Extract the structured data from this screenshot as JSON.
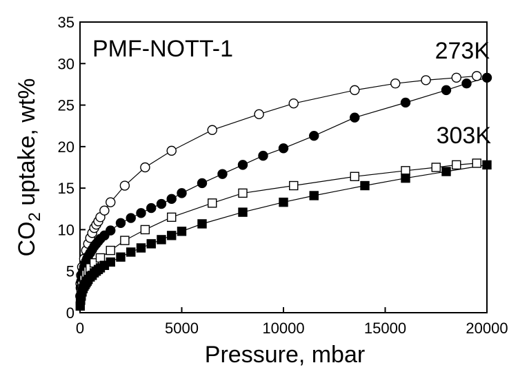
{
  "chart_data": {
    "type": "scatter",
    "title": "",
    "xlabel": "Pressure, mbar",
    "ylabel_main": "CO",
    "ylabel_sub": "2",
    "ylabel_rest": " uptake, wt%",
    "xlim": [
      0,
      20000
    ],
    "ylim": [
      0,
      35
    ],
    "xticks": [
      0,
      5000,
      10000,
      15000,
      20000
    ],
    "yticks": [
      0,
      5,
      10,
      15,
      20,
      25,
      30,
      35
    ],
    "grid": false,
    "annotations": {
      "sample": "PMF-NOTT-1",
      "label_273": "273K",
      "label_303": "303K"
    },
    "series": [
      {
        "marker": "circle",
        "filled": false,
        "color": "#000000",
        "x": [
          20,
          50,
          100,
          200,
          300,
          400,
          500,
          600,
          700,
          800,
          900,
          1000,
          1200,
          1500,
          2200,
          3200,
          4500,
          6500,
          8800,
          10500,
          13500,
          15500,
          17000,
          18500,
          19500
        ],
        "y": [
          3.5,
          4.5,
          5.5,
          6.5,
          7.5,
          8.3,
          9.0,
          9.6,
          10.2,
          10.6,
          11.0,
          11.5,
          12.3,
          13.3,
          15.3,
          17.5,
          19.5,
          22.0,
          23.9,
          25.2,
          26.8,
          27.6,
          28.0,
          28.3,
          28.5
        ]
      },
      {
        "marker": "circle",
        "filled": true,
        "color": "#000000",
        "x": [
          10,
          30,
          60,
          100,
          150,
          200,
          250,
          300,
          350,
          400,
          500,
          600,
          700,
          800,
          900,
          1000,
          1200,
          1500,
          2000,
          2500,
          3000,
          3500,
          4000,
          4500,
          5000,
          6000,
          7000,
          8000,
          9000,
          10000,
          11500,
          13500,
          16000,
          18000,
          19000,
          20000
        ],
        "y": [
          2.0,
          3.0,
          3.8,
          4.5,
          5.0,
          5.5,
          5.9,
          6.2,
          6.5,
          6.8,
          7.2,
          7.6,
          8.0,
          8.3,
          8.6,
          8.9,
          9.3,
          9.9,
          10.8,
          11.4,
          12.0,
          12.6,
          13.1,
          13.7,
          14.4,
          15.6,
          16.7,
          17.8,
          18.9,
          19.8,
          21.3,
          23.5,
          25.3,
          26.8,
          27.6,
          28.3
        ]
      },
      {
        "marker": "square",
        "filled": false,
        "color": "#000000",
        "x": [
          20,
          50,
          100,
          200,
          300,
          400,
          500,
          700,
          1000,
          1500,
          2200,
          3200,
          4500,
          6500,
          8000,
          10500,
          13500,
          16000,
          17500,
          18500,
          19500
        ],
        "y": [
          1.5,
          2.5,
          3.3,
          4.0,
          4.6,
          5.0,
          5.4,
          6.0,
          6.6,
          7.5,
          8.7,
          10.0,
          11.5,
          13.2,
          14.4,
          15.3,
          16.4,
          17.1,
          17.5,
          17.8,
          18.0
        ]
      },
      {
        "marker": "square",
        "filled": true,
        "color": "#000000",
        "x": [
          10,
          30,
          60,
          100,
          150,
          200,
          250,
          300,
          350,
          400,
          500,
          600,
          700,
          800,
          900,
          1000,
          1200,
          1500,
          2000,
          2500,
          3000,
          3500,
          4000,
          4500,
          5000,
          6000,
          8000,
          10000,
          11500,
          14000,
          16000,
          18000,
          20000
        ],
        "y": [
          0.8,
          1.5,
          2.0,
          2.5,
          2.9,
          3.2,
          3.4,
          3.6,
          3.8,
          4.0,
          4.3,
          4.5,
          4.8,
          5.0,
          5.2,
          5.4,
          5.7,
          6.1,
          6.7,
          7.3,
          7.8,
          8.3,
          8.8,
          9.3,
          9.8,
          10.7,
          12.1,
          13.3,
          14.1,
          15.3,
          16.2,
          17.0,
          17.8
        ]
      }
    ]
  }
}
